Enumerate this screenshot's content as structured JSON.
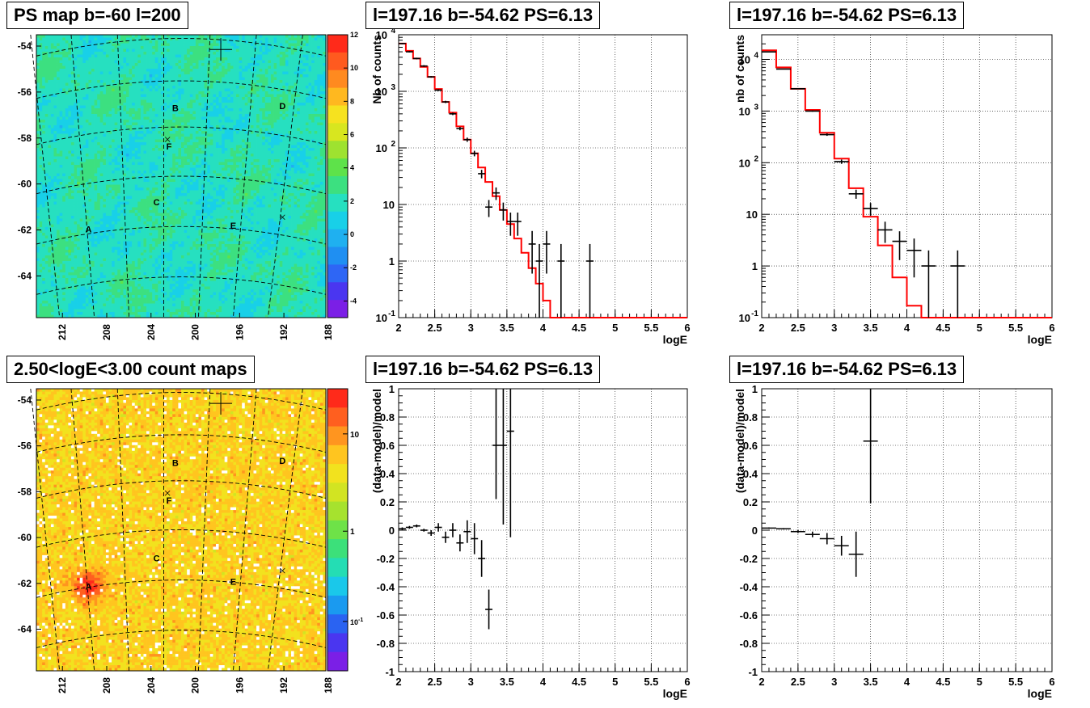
{
  "titles": {
    "map_top": "PS map b=-60 l=200",
    "map_bottom": "2.50<logE<3.00 count maps",
    "spec_tl": "l=197.16 b=-54.62 PS=6.13",
    "spec_tr": "l=197.16 b=-54.62 PS=6.13",
    "res_bl": "l=197.16 b=-54.62 PS=6.13",
    "res_br": "l=197.16 b=-54.62 PS=6.13"
  },
  "chart_data": [
    {
      "id": "ps_map",
      "type": "heatmap",
      "title": "PS map b=-60 l=200",
      "y_ticks": [
        "-54",
        "-56",
        "-58",
        "-60",
        "-62",
        "-64"
      ],
      "x_ticks": [
        "212",
        "208",
        "204",
        "200",
        "196",
        "192",
        "188"
      ],
      "colorbar_ticks": [
        "12",
        "10",
        "8",
        "6",
        "4",
        "2",
        "0",
        "-2",
        "-4"
      ],
      "zlim": [
        -5,
        12
      ],
      "sources": [
        {
          "label": "A",
          "x": 0.18,
          "y": 0.687
        },
        {
          "label": "B",
          "x": 0.48,
          "y": 0.259
        },
        {
          "label": "C",
          "x": 0.415,
          "y": 0.592
        },
        {
          "label": "D",
          "x": 0.85,
          "y": 0.252
        },
        {
          "label": "E",
          "x": 0.68,
          "y": 0.674
        },
        {
          "label": "F",
          "x": 0.458,
          "y": 0.394
        }
      ]
    },
    {
      "id": "count_map",
      "type": "heatmap",
      "title": "2.50<logE<3.00 count maps",
      "y_ticks": [
        "-54",
        "-56",
        "-58",
        "-60",
        "-62",
        "-64"
      ],
      "x_ticks": [
        "212",
        "208",
        "204",
        "200",
        "196",
        "192",
        "188"
      ],
      "colorbar_ticks": [
        "10",
        "1",
        "10-1"
      ],
      "z_scale": "log",
      "sources": [
        {
          "label": "A",
          "x": 0.18,
          "y": 0.7
        },
        {
          "label": "B",
          "x": 0.48,
          "y": 0.262
        },
        {
          "label": "C",
          "x": 0.415,
          "y": 0.6
        },
        {
          "label": "D",
          "x": 0.85,
          "y": 0.255
        },
        {
          "label": "E",
          "x": 0.68,
          "y": 0.683
        },
        {
          "label": "F",
          "x": 0.458,
          "y": 0.395
        }
      ]
    },
    {
      "id": "spec_tl",
      "type": "line",
      "title": "l=197.16 b=-54.62 PS=6.13",
      "xlabel": "logE",
      "ylabel": "Nb of counts",
      "xlim": [
        2,
        6
      ],
      "ylim": [
        0.1,
        10000
      ],
      "y_scale": "log",
      "x_ticks": [
        "2",
        "2.5",
        "3",
        "3.5",
        "4",
        "4.5",
        "5",
        "5.5",
        "6"
      ],
      "y_ticks": [
        "10^-1",
        "1",
        "10",
        "10^2",
        "10^3",
        "10^4"
      ],
      "model_steps": [
        [
          2.0,
          2.1,
          7000
        ],
        [
          2.1,
          2.2,
          5200
        ],
        [
          2.2,
          2.3,
          3800
        ],
        [
          2.3,
          2.4,
          2700
        ],
        [
          2.4,
          2.5,
          1800
        ],
        [
          2.5,
          2.6,
          1100
        ],
        [
          2.6,
          2.7,
          650
        ],
        [
          2.7,
          2.8,
          420
        ],
        [
          2.8,
          2.9,
          240
        ],
        [
          2.9,
          3.0,
          140
        ],
        [
          3.0,
          3.1,
          80
        ],
        [
          3.1,
          3.2,
          45
        ],
        [
          3.2,
          3.3,
          25
        ],
        [
          3.3,
          3.4,
          14
        ],
        [
          3.4,
          3.5,
          8
        ],
        [
          3.5,
          3.6,
          4.5
        ],
        [
          3.6,
          3.7,
          2.5
        ],
        [
          3.7,
          3.8,
          1.4
        ],
        [
          3.8,
          3.9,
          0.75
        ],
        [
          3.9,
          4.0,
          0.4
        ],
        [
          4.0,
          4.1,
          0.2
        ],
        [
          4.1,
          6.0,
          0.1
        ]
      ],
      "points": [
        {
          "x": 2.05,
          "y": 7000,
          "lo": 6800,
          "hi": 7200
        },
        {
          "x": 2.15,
          "y": 5000,
          "lo": 4850,
          "hi": 5150
        },
        {
          "x": 2.25,
          "y": 3800,
          "lo": 3680,
          "hi": 3920
        },
        {
          "x": 2.35,
          "y": 2800,
          "lo": 2700,
          "hi": 2900
        },
        {
          "x": 2.45,
          "y": 1800,
          "lo": 1740,
          "hi": 1860
        },
        {
          "x": 2.55,
          "y": 1050,
          "lo": 1010,
          "hi": 1090
        },
        {
          "x": 2.65,
          "y": 650,
          "lo": 620,
          "hi": 680
        },
        {
          "x": 2.75,
          "y": 400,
          "lo": 380,
          "hi": 420
        },
        {
          "x": 2.85,
          "y": 220,
          "lo": 205,
          "hi": 235
        },
        {
          "x": 2.95,
          "y": 140,
          "lo": 128,
          "hi": 152
        },
        {
          "x": 3.05,
          "y": 80,
          "lo": 71,
          "hi": 89
        },
        {
          "x": 3.15,
          "y": 35,
          "lo": 29,
          "hi": 41
        },
        {
          "x": 3.25,
          "y": 9,
          "lo": 6,
          "hi": 12
        },
        {
          "x": 3.35,
          "y": 16,
          "lo": 12,
          "hi": 20
        },
        {
          "x": 3.45,
          "y": 8,
          "lo": 5.2,
          "hi": 10.8
        },
        {
          "x": 3.55,
          "y": 5,
          "lo": 2.8,
          "hi": 7.2
        },
        {
          "x": 3.65,
          "y": 5,
          "lo": 2.8,
          "hi": 7.2
        },
        {
          "x": 3.85,
          "y": 2,
          "lo": 0.6,
          "hi": 3.4
        },
        {
          "x": 3.95,
          "y": 1,
          "lo": 0.1,
          "hi": 2.0
        },
        {
          "x": 4.05,
          "y": 2,
          "lo": 0.6,
          "hi": 3.4
        },
        {
          "x": 4.25,
          "y": 1,
          "lo": 0.1,
          "hi": 2.0
        },
        {
          "x": 4.65,
          "y": 1,
          "lo": 0.1,
          "hi": 2.0
        }
      ]
    },
    {
      "id": "spec_tr",
      "type": "line",
      "title": "l=197.16 b=-54.62 PS=6.13",
      "xlabel": "logE",
      "ylabel": "nb of counts",
      "xlim": [
        2,
        6
      ],
      "ylim": [
        0.1,
        30000
      ],
      "y_scale": "log",
      "x_ticks": [
        "2",
        "2.5",
        "3",
        "3.5",
        "4",
        "4.5",
        "5",
        "5.5",
        "6"
      ],
      "y_ticks": [
        "10^-1",
        "1",
        "10",
        "10^2",
        "10^3",
        "10^4"
      ],
      "model_steps": [
        [
          2.0,
          2.2,
          15000
        ],
        [
          2.2,
          2.4,
          7000
        ],
        [
          2.4,
          2.6,
          2700
        ],
        [
          2.6,
          2.8,
          1050
        ],
        [
          2.8,
          3.0,
          380
        ],
        [
          3.0,
          3.2,
          120
        ],
        [
          3.2,
          3.4,
          32
        ],
        [
          3.4,
          3.6,
          9
        ],
        [
          3.6,
          3.8,
          2.5
        ],
        [
          3.8,
          4.0,
          0.6
        ],
        [
          4.0,
          4.2,
          0.17
        ],
        [
          4.2,
          6.0,
          0.1
        ]
      ],
      "points": [
        {
          "x": 2.1,
          "y": 14000,
          "lo": 13800,
          "hi": 14200
        },
        {
          "x": 2.3,
          "y": 6500,
          "lo": 6400,
          "hi": 6600
        },
        {
          "x": 2.5,
          "y": 2700,
          "lo": 2650,
          "hi": 2750
        },
        {
          "x": 2.7,
          "y": 1000,
          "lo": 970,
          "hi": 1030
        },
        {
          "x": 2.9,
          "y": 350,
          "lo": 331,
          "hi": 369
        },
        {
          "x": 3.1,
          "y": 105,
          "lo": 95,
          "hi": 115
        },
        {
          "x": 3.3,
          "y": 25,
          "lo": 20,
          "hi": 30
        },
        {
          "x": 3.5,
          "y": 13,
          "lo": 9.4,
          "hi": 16.6
        },
        {
          "x": 3.7,
          "y": 5,
          "lo": 2.8,
          "hi": 7.2
        },
        {
          "x": 3.9,
          "y": 3,
          "lo": 1.3,
          "hi": 4.7
        },
        {
          "x": 4.1,
          "y": 2,
          "lo": 0.6,
          "hi": 3.4
        },
        {
          "x": 4.3,
          "y": 1,
          "lo": 0.1,
          "hi": 2.0
        },
        {
          "x": 4.7,
          "y": 1,
          "lo": 0.1,
          "hi": 2.0
        }
      ]
    },
    {
      "id": "res_bl",
      "type": "scatter",
      "title": "l=197.16 b=-54.62 PS=6.13",
      "xlabel": "logE",
      "ylabel": "(data-model)/model",
      "xlim": [
        2,
        6
      ],
      "ylim": [
        -1,
        1
      ],
      "x_ticks": [
        "2",
        "2.5",
        "3",
        "3.5",
        "4",
        "4.5",
        "5",
        "5.5",
        "6"
      ],
      "y_ticks": [
        "-1",
        "-0.8",
        "-0.6",
        "-0.4",
        "-0.2",
        "0",
        "0.2",
        "0.4",
        "0.6",
        "0.8",
        "1"
      ],
      "points": [
        {
          "x": 2.05,
          "y": 0.01,
          "lo": 0.0,
          "hi": 0.02
        },
        {
          "x": 2.15,
          "y": 0.02,
          "lo": 0.01,
          "hi": 0.03
        },
        {
          "x": 2.25,
          "y": 0.03,
          "lo": 0.02,
          "hi": 0.04
        },
        {
          "x": 2.35,
          "y": 0.0,
          "lo": -0.01,
          "hi": 0.01
        },
        {
          "x": 2.45,
          "y": -0.02,
          "lo": -0.04,
          "hi": 0.0
        },
        {
          "x": 2.55,
          "y": 0.02,
          "lo": -0.01,
          "hi": 0.05
        },
        {
          "x": 2.65,
          "y": -0.05,
          "lo": -0.09,
          "hi": -0.01
        },
        {
          "x": 2.75,
          "y": 0.0,
          "lo": -0.05,
          "hi": 0.05
        },
        {
          "x": 2.85,
          "y": -0.09,
          "lo": -0.15,
          "hi": -0.03
        },
        {
          "x": 2.95,
          "y": -0.01,
          "lo": -0.09,
          "hi": 0.07
        },
        {
          "x": 3.05,
          "y": -0.06,
          "lo": -0.17,
          "hi": 0.05
        },
        {
          "x": 3.15,
          "y": -0.2,
          "lo": -0.33,
          "hi": -0.07
        },
        {
          "x": 3.25,
          "y": -0.56,
          "lo": -0.7,
          "hi": -0.42
        },
        {
          "x": 3.35,
          "y": 0.6,
          "lo": 0.22,
          "hi": 1.0
        },
        {
          "x": 3.45,
          "y": 0.6,
          "lo": 0.04,
          "hi": 1.0
        },
        {
          "x": 3.55,
          "y": 0.7,
          "lo": -0.05,
          "hi": 1.0
        }
      ]
    },
    {
      "id": "res_br",
      "type": "scatter",
      "title": "l=197.16 b=-54.62 PS=6.13",
      "xlabel": "logE",
      "ylabel": "(data-model)/model",
      "xlim": [
        2,
        6
      ],
      "ylim": [
        -1,
        1
      ],
      "x_ticks": [
        "2",
        "2.5",
        "3",
        "3.5",
        "4",
        "4.5",
        "5",
        "5.5",
        "6"
      ],
      "y_ticks": [
        "-1",
        "-0.8",
        "-0.6",
        "-0.4",
        "-0.2",
        "0",
        "0.2",
        "0.4",
        "0.6",
        "0.8",
        "1"
      ],
      "points": [
        {
          "x": 2.1,
          "y": 0.015,
          "lo": 0.01,
          "hi": 0.02
        },
        {
          "x": 2.3,
          "y": 0.01,
          "lo": 0.005,
          "hi": 0.015
        },
        {
          "x": 2.5,
          "y": -0.01,
          "lo": -0.02,
          "hi": 0.0
        },
        {
          "x": 2.7,
          "y": -0.03,
          "lo": -0.05,
          "hi": -0.01
        },
        {
          "x": 2.9,
          "y": -0.06,
          "lo": -0.1,
          "hi": -0.02
        },
        {
          "x": 3.1,
          "y": -0.11,
          "lo": -0.18,
          "hi": -0.04
        },
        {
          "x": 3.3,
          "y": -0.17,
          "lo": -0.33,
          "hi": -0.01
        },
        {
          "x": 3.5,
          "y": 0.63,
          "lo": 0.19,
          "hi": 1.0
        }
      ]
    }
  ]
}
